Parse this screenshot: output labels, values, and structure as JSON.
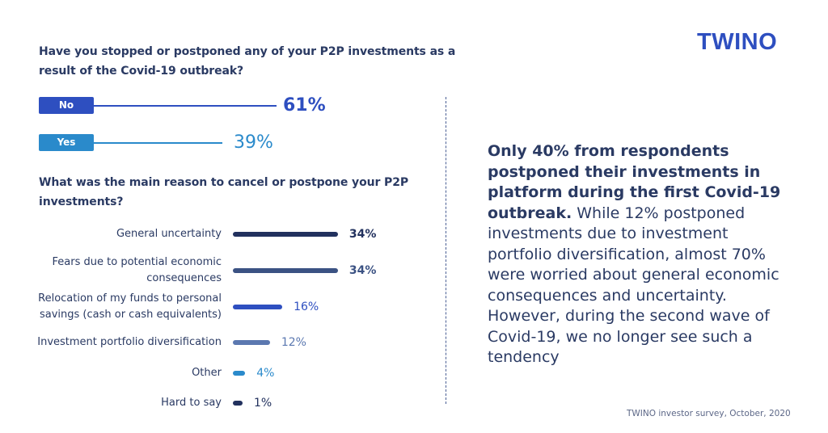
{
  "brand": {
    "logo_text": "TWINO",
    "color": "#2e4fc0"
  },
  "question1": {
    "title": "Have you stopped or postponed any of your P2P investments as a result of the Covid-19 outbreak?",
    "answers": [
      {
        "label": "No",
        "value": 61,
        "value_text": "61%",
        "color": "#2e4fc0"
      },
      {
        "label": "Yes",
        "value": 39,
        "value_text": "39%",
        "color": "#2a8acb"
      }
    ]
  },
  "chart_data": {
    "type": "bar",
    "orientation": "horizontal",
    "title": "What was the main reason to cancel or postpone your P2P investments?",
    "categories": [
      "General uncertainty",
      "Fears due to potential economic consequences",
      "Relocation of my funds to personal savings (cash or cash equivalents)",
      "Investment portfolio diversification",
      "Other",
      "Hard to say"
    ],
    "values": [
      34,
      34,
      16,
      12,
      4,
      1
    ],
    "value_labels": [
      "34%",
      "34%",
      "16%",
      "12%",
      "4%",
      "1%"
    ],
    "colors": [
      "#22315e",
      "#3b5283",
      "#2e4fc0",
      "#5b78b0",
      "#2a8acb",
      "#22315e"
    ],
    "unit": "%"
  },
  "summary": {
    "bold": "Only 40% from respondents postponed their investments in platform during the first Covid-19 outbreak.",
    "regular": " While 12% postponed investments due to investment portfolio diversification, almost 70% were worried about general economic consequences and uncertainty. However, during the second wave of Covid-19, we no longer see such a tendency"
  },
  "footer": {
    "source": "TWINO investor survey, October, 2020"
  }
}
